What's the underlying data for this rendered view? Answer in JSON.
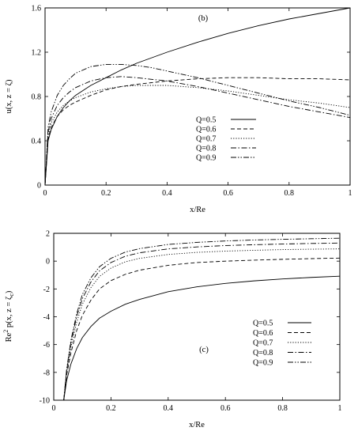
{
  "chart_data": [
    {
      "type": "line",
      "panel_label": "(b)",
      "xlabel": "x/Re",
      "ylabel": "u(x, z = ζ)",
      "xlim": [
        0,
        1
      ],
      "ylim": [
        0,
        1.6
      ],
      "xticks": [
        "0",
        "0.2",
        "0.4",
        "0.6",
        "0.8",
        "1"
      ],
      "yticks": [
        "0",
        "0.4",
        "0.8",
        "1.2",
        "1.6"
      ],
      "xtick_values": [
        0,
        0.2,
        0.4,
        0.6,
        0.8,
        1
      ],
      "ytick_values": [
        0,
        0.4,
        0.8,
        1.2,
        1.6
      ],
      "legend_position": "lower-right",
      "series": [
        {
          "name": "Q=0.5",
          "dash": "solid",
          "x": [
            0,
            0.01,
            0.02,
            0.04,
            0.06,
            0.08,
            0.1,
            0.15,
            0.2,
            0.25,
            0.3,
            0.4,
            0.5,
            0.6,
            0.7,
            0.8,
            0.9,
            1.0
          ],
          "y": [
            0.0,
            0.4,
            0.5,
            0.62,
            0.7,
            0.76,
            0.81,
            0.9,
            0.97,
            1.04,
            1.1,
            1.2,
            1.29,
            1.37,
            1.44,
            1.5,
            1.55,
            1.6
          ]
        },
        {
          "name": "Q=0.6",
          "dash": "dashed",
          "x": [
            0,
            0.01,
            0.02,
            0.04,
            0.06,
            0.08,
            0.1,
            0.15,
            0.2,
            0.25,
            0.3,
            0.4,
            0.5,
            0.6,
            0.7,
            0.8,
            0.9,
            1.0
          ],
          "y": [
            0.0,
            0.42,
            0.52,
            0.62,
            0.68,
            0.72,
            0.75,
            0.81,
            0.86,
            0.89,
            0.91,
            0.94,
            0.96,
            0.97,
            0.97,
            0.96,
            0.96,
            0.95
          ]
        },
        {
          "name": "Q=0.7",
          "dash": "dotted",
          "x": [
            0,
            0.01,
            0.02,
            0.04,
            0.06,
            0.08,
            0.1,
            0.15,
            0.2,
            0.25,
            0.3,
            0.35,
            0.4,
            0.5,
            0.6,
            0.7,
            0.8,
            0.9,
            1.0
          ],
          "y": [
            0.0,
            0.45,
            0.56,
            0.66,
            0.72,
            0.76,
            0.79,
            0.84,
            0.87,
            0.89,
            0.9,
            0.9,
            0.9,
            0.88,
            0.85,
            0.81,
            0.77,
            0.74,
            0.7
          ]
        },
        {
          "name": "Q=0.8",
          "dash": "dash-dot",
          "x": [
            0,
            0.01,
            0.02,
            0.04,
            0.06,
            0.08,
            0.1,
            0.15,
            0.2,
            0.25,
            0.3,
            0.4,
            0.5,
            0.6,
            0.7,
            0.8,
            0.9,
            1.0
          ],
          "y": [
            0.0,
            0.48,
            0.6,
            0.72,
            0.79,
            0.84,
            0.88,
            0.94,
            0.97,
            0.98,
            0.97,
            0.94,
            0.89,
            0.83,
            0.77,
            0.71,
            0.66,
            0.61
          ]
        },
        {
          "name": "Q=0.9",
          "dash": "dash-dot-dot",
          "x": [
            0,
            0.01,
            0.02,
            0.04,
            0.06,
            0.08,
            0.1,
            0.15,
            0.2,
            0.25,
            0.3,
            0.35,
            0.4,
            0.5,
            0.6,
            0.7,
            0.8,
            0.9,
            1.0
          ],
          "y": [
            0.0,
            0.52,
            0.66,
            0.81,
            0.9,
            0.96,
            1.01,
            1.07,
            1.09,
            1.09,
            1.08,
            1.06,
            1.03,
            0.97,
            0.9,
            0.83,
            0.76,
            0.7,
            0.63
          ]
        }
      ]
    },
    {
      "type": "line",
      "panel_label": "(c)",
      "xlabel": "x/Re",
      "ylabel_main": "Re",
      "ylabel_sup": "2",
      "ylabel_rest": " p(x, z = ζ",
      "ylabel_sub": "c",
      "ylabel_close": ")",
      "xlim": [
        0,
        1
      ],
      "ylim": [
        -10,
        2
      ],
      "xticks": [
        "0",
        "0.2",
        "0.4",
        "0.6",
        "0.8",
        "1"
      ],
      "yticks": [
        "-10",
        "-8",
        "-6",
        "-4",
        "-2",
        "0",
        "2"
      ],
      "xtick_values": [
        0,
        0.2,
        0.4,
        0.6,
        0.8,
        1
      ],
      "ytick_values": [
        -10,
        -8,
        -6,
        -4,
        -2,
        0,
        2
      ],
      "legend_position": "lower-right",
      "series": [
        {
          "name": "Q=0.5",
          "dash": "solid",
          "x": [
            0.035,
            0.045,
            0.06,
            0.08,
            0.1,
            0.13,
            0.16,
            0.2,
            0.25,
            0.3,
            0.4,
            0.5,
            0.6,
            0.7,
            0.8,
            0.9,
            1.0
          ],
          "y": [
            -10.0,
            -8.6,
            -7.4,
            -6.3,
            -5.5,
            -4.7,
            -4.1,
            -3.6,
            -3.1,
            -2.75,
            -2.2,
            -1.85,
            -1.6,
            -1.42,
            -1.28,
            -1.17,
            -1.08
          ]
        },
        {
          "name": "Q=0.6",
          "dash": "dashed",
          "x": [
            0.035,
            0.045,
            0.06,
            0.08,
            0.1,
            0.13,
            0.16,
            0.2,
            0.25,
            0.3,
            0.4,
            0.5,
            0.6,
            0.7,
            0.8,
            0.9,
            1.0
          ],
          "y": [
            -10.0,
            -8.2,
            -6.6,
            -5.0,
            -3.9,
            -2.8,
            -2.0,
            -1.4,
            -0.95,
            -0.65,
            -0.3,
            -0.1,
            0.0,
            0.07,
            0.13,
            0.18,
            0.22
          ]
        },
        {
          "name": "Q=0.7",
          "dash": "dotted",
          "x": [
            0.035,
            0.045,
            0.06,
            0.08,
            0.1,
            0.13,
            0.16,
            0.2,
            0.25,
            0.3,
            0.4,
            0.5,
            0.6,
            0.7,
            0.8,
            0.9,
            1.0
          ],
          "y": [
            -10.0,
            -8.0,
            -6.2,
            -4.4,
            -3.1,
            -1.9,
            -1.1,
            -0.5,
            -0.05,
            0.2,
            0.48,
            0.63,
            0.72,
            0.78,
            0.83,
            0.86,
            0.88
          ]
        },
        {
          "name": "Q=0.8",
          "dash": "dash-dot",
          "x": [
            0.035,
            0.045,
            0.06,
            0.08,
            0.1,
            0.13,
            0.16,
            0.2,
            0.25,
            0.3,
            0.4,
            0.5,
            0.6,
            0.7,
            0.8,
            0.9,
            1.0
          ],
          "y": [
            -10.0,
            -7.9,
            -5.9,
            -4.0,
            -2.7,
            -1.5,
            -0.7,
            -0.1,
            0.35,
            0.6,
            0.88,
            1.02,
            1.12,
            1.18,
            1.23,
            1.27,
            1.3
          ]
        },
        {
          "name": "Q=0.9",
          "dash": "dash-dot-dot",
          "x": [
            0.035,
            0.045,
            0.06,
            0.08,
            0.1,
            0.13,
            0.16,
            0.2,
            0.25,
            0.3,
            0.4,
            0.5,
            0.6,
            0.7,
            0.8,
            0.9,
            1.0
          ],
          "y": [
            -10.0,
            -7.8,
            -5.7,
            -3.8,
            -2.4,
            -1.2,
            -0.4,
            0.2,
            0.65,
            0.9,
            1.2,
            1.35,
            1.45,
            1.52,
            1.57,
            1.61,
            1.65
          ]
        }
      ]
    }
  ]
}
